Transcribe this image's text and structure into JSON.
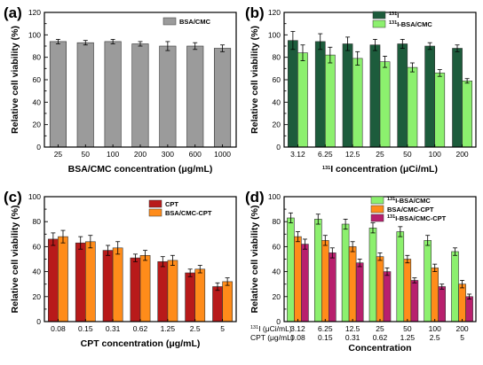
{
  "chart_data": [
    {
      "type": "bar",
      "panel": "(a)",
      "categories": [
        "25",
        "50",
        "100",
        "200",
        "300",
        "600",
        "1000"
      ],
      "series": [
        {
          "name": "BSA/CMC",
          "color": "#9b9b9b",
          "values": [
            94,
            93,
            94,
            92,
            90,
            90,
            88
          ],
          "errors": [
            2,
            2,
            2,
            2,
            4,
            3,
            3
          ]
        }
      ],
      "xlabel": "BSA/CMC concentration (μg/mL)",
      "ylabel": "Relative cell viability (%)",
      "ylim": [
        0,
        120
      ],
      "yticks": [
        0,
        20,
        40,
        60,
        80,
        100,
        120
      ],
      "legend": "top-right"
    },
    {
      "type": "bar",
      "panel": "(b)",
      "categories": [
        "3.12",
        "6.25",
        "12.5",
        "25",
        "50",
        "100",
        "200"
      ],
      "series": [
        {
          "name": "I",
          "sup": "131",
          "color": "#1d5c3c",
          "values": [
            95,
            94,
            92,
            91,
            92,
            90,
            88
          ],
          "errors": [
            8,
            7,
            6,
            5,
            4,
            3,
            3
          ]
        },
        {
          "name": "I-BSA/CMC",
          "sup": "131",
          "color": "#8cf06e",
          "values": [
            84,
            82,
            79,
            76,
            71,
            66,
            59
          ],
          "errors": [
            7,
            7,
            6,
            5,
            4,
            3,
            2
          ]
        }
      ],
      "xlabel": "I concentration (μCi/mL)",
      "xlabel_sup": "131",
      "ylabel": "Relative cell viability (%)",
      "ylim": [
        0,
        120
      ],
      "yticks": [
        0,
        20,
        40,
        60,
        80,
        100,
        120
      ],
      "legend": "top-right"
    },
    {
      "type": "bar",
      "panel": "(c)",
      "categories": [
        "0.08",
        "0.15",
        "0.31",
        "0.62",
        "1.25",
        "2.5",
        "5"
      ],
      "series": [
        {
          "name": "CPT",
          "color": "#b81a1a",
          "values": [
            66,
            63,
            57,
            51,
            48,
            39,
            28
          ],
          "errors": [
            5,
            5,
            4,
            3,
            4,
            3,
            3
          ]
        },
        {
          "name": "BSA/CMC-CPT",
          "color": "#ff8c1a",
          "values": [
            68,
            64,
            59,
            53,
            49,
            42,
            32
          ],
          "errors": [
            5,
            5,
            5,
            4,
            4,
            3,
            3
          ]
        }
      ],
      "xlabel": "CPT concentration (μg/mL)",
      "ylabel": "Relative cell viability (%)",
      "ylim": [
        0,
        100
      ],
      "yticks": [
        0,
        20,
        40,
        60,
        80,
        100
      ],
      "legend": "top-right"
    },
    {
      "type": "bar",
      "panel": "(d)",
      "categories": [
        "3.12",
        "6.25",
        "12.5",
        "25",
        "50",
        "100",
        "200"
      ],
      "categories2": [
        "0.08",
        "0.15",
        "0.31",
        "0.62",
        "1.25",
        "2.5",
        "5"
      ],
      "row1_label": "I (μCi/mL)",
      "row1_sup": "131",
      "row2_label": "CPT (μg/mL)",
      "series": [
        {
          "name": "I-BSA/CMC",
          "sup": "131",
          "color": "#8cf06e",
          "values": [
            83,
            82,
            78,
            75,
            72,
            65,
            56
          ],
          "errors": [
            4,
            4,
            4,
            4,
            4,
            4,
            3
          ]
        },
        {
          "name": "BSA/CMC-CPT",
          "color": "#ff8c1a",
          "values": [
            68,
            65,
            60,
            52,
            50,
            43,
            30
          ],
          "errors": [
            4,
            4,
            4,
            3,
            3,
            3,
            3
          ]
        },
        {
          "name": "I-BSA/CMC-CPT",
          "sup": "131",
          "color": "#b8206e",
          "values": [
            62,
            55,
            47,
            40,
            33,
            28,
            20
          ],
          "errors": [
            4,
            4,
            3,
            3,
            2,
            2,
            2
          ]
        }
      ],
      "xlabel": "Concentration",
      "ylabel": "Relative cell viability (%)",
      "ylim": [
        0,
        100
      ],
      "yticks": [
        0,
        20,
        40,
        60,
        80,
        100
      ],
      "legend": "top-right"
    }
  ]
}
